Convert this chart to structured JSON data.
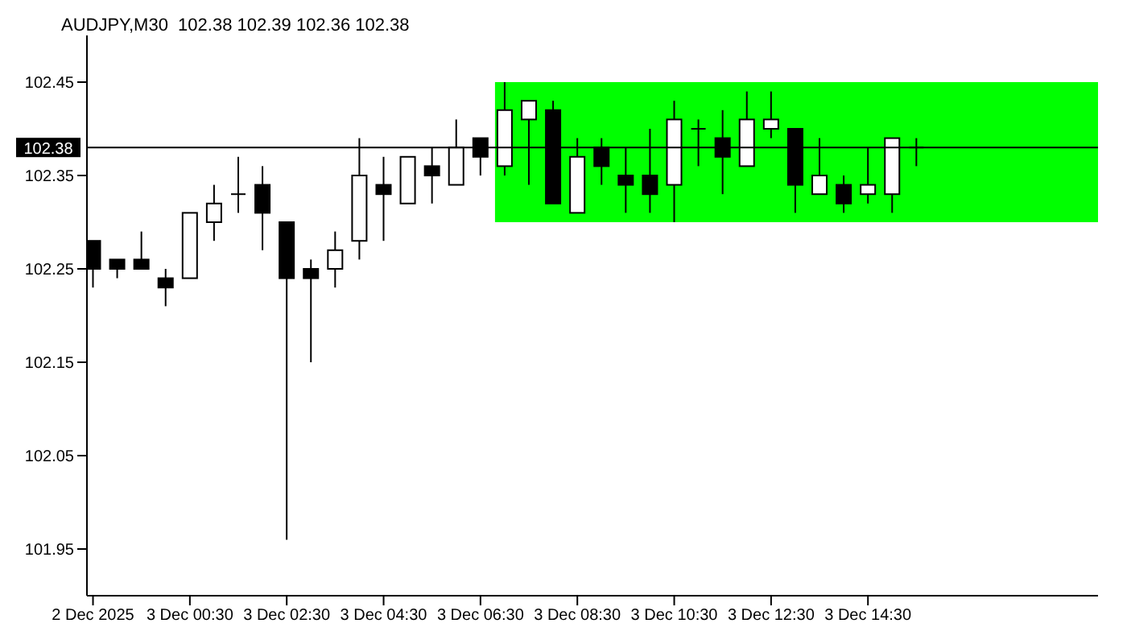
{
  "chart_data": {
    "type": "candlestick",
    "title": "AUDJPY,M30  102.38 102.39 102.36 102.38",
    "categories": [
      "2 Dec 2025",
      null,
      null,
      null,
      "3 Dec 00:30",
      null,
      null,
      null,
      "3 Dec 02:30",
      null,
      null,
      null,
      "3 Dec 04:30",
      null,
      null,
      null,
      "3 Dec 06:30",
      null,
      null,
      null,
      "3 Dec 08:30",
      null,
      null,
      null,
      "3 Dec 10:30",
      null,
      null,
      null,
      "3 Dec 12:30",
      null,
      null,
      null,
      "3 Dec 14:30",
      null,
      null
    ],
    "ohlc": [
      [
        102.28,
        102.28,
        102.23,
        102.25
      ],
      [
        102.26,
        102.26,
        102.24,
        102.25
      ],
      [
        102.26,
        102.29,
        102.25,
        102.25
      ],
      [
        102.24,
        102.25,
        102.21,
        102.23
      ],
      [
        102.24,
        102.31,
        102.24,
        102.31
      ],
      [
        102.3,
        102.34,
        102.28,
        102.32
      ],
      [
        102.33,
        102.37,
        102.31,
        102.33
      ],
      [
        102.34,
        102.36,
        102.27,
        102.31
      ],
      [
        102.3,
        102.3,
        101.96,
        102.24
      ],
      [
        102.25,
        102.26,
        102.15,
        102.24
      ],
      [
        102.25,
        102.29,
        102.23,
        102.27
      ],
      [
        102.28,
        102.39,
        102.26,
        102.35
      ],
      [
        102.34,
        102.37,
        102.28,
        102.33
      ],
      [
        102.32,
        102.37,
        102.32,
        102.37
      ],
      [
        102.36,
        102.38,
        102.32,
        102.35
      ],
      [
        102.34,
        102.41,
        102.34,
        102.38
      ],
      [
        102.39,
        102.39,
        102.35,
        102.37
      ],
      [
        102.36,
        102.45,
        102.35,
        102.42
      ],
      [
        102.41,
        102.43,
        102.34,
        102.43
      ],
      [
        102.42,
        102.43,
        102.32,
        102.32
      ],
      [
        102.31,
        102.39,
        102.31,
        102.37
      ],
      [
        102.38,
        102.39,
        102.34,
        102.36
      ],
      [
        102.35,
        102.38,
        102.31,
        102.34
      ],
      [
        102.35,
        102.4,
        102.31,
        102.33
      ],
      [
        102.34,
        102.43,
        102.3,
        102.41
      ],
      [
        102.4,
        102.41,
        102.36,
        102.4
      ],
      [
        102.39,
        102.42,
        102.33,
        102.37
      ],
      [
        102.36,
        102.44,
        102.36,
        102.41
      ],
      [
        102.4,
        102.44,
        102.39,
        102.41
      ],
      [
        102.4,
        102.4,
        102.31,
        102.34
      ],
      [
        102.33,
        102.39,
        102.33,
        102.35
      ],
      [
        102.34,
        102.35,
        102.31,
        102.32
      ],
      [
        102.33,
        102.38,
        102.32,
        102.34
      ],
      [
        102.33,
        102.39,
        102.31,
        102.39
      ],
      [
        102.38,
        102.39,
        102.36,
        102.38
      ]
    ],
    "ylim": [
      101.9,
      102.5
    ],
    "yticks": [
      101.95,
      102.05,
      102.15,
      102.25,
      102.35,
      102.45
    ],
    "ref_lines": [
      {
        "axis": "y",
        "value": 102.38,
        "label": "102.38",
        "color": "#000000"
      }
    ],
    "bands": [
      {
        "axis": "y",
        "from": 102.3,
        "to": 102.45,
        "color": "#00ff00"
      }
    ],
    "grid": false,
    "legend": false
  }
}
